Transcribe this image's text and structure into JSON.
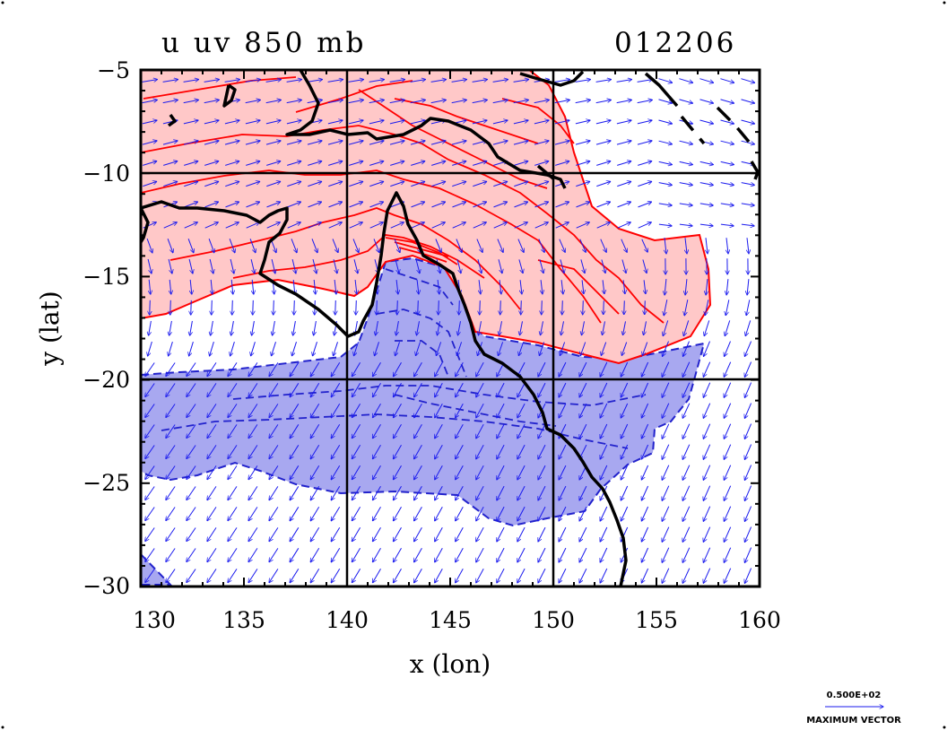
{
  "chart_data": {
    "type": "contour",
    "title": "u uv 850 mb",
    "date_label": "012206",
    "xlabel": "x (lon)",
    "ylabel": "y (lat)",
    "xlim": [
      130,
      160
    ],
    "ylim": [
      -30,
      -5
    ],
    "x_ticks": [
      "130",
      "135",
      "140",
      "145",
      "150",
      "155",
      "160"
    ],
    "y_ticks": [
      "−5",
      "−10",
      "−15",
      "−20",
      "−25",
      "−30"
    ],
    "grid_lon": [
      140,
      150
    ],
    "grid_lat": [
      -10,
      -20
    ],
    "fields": [
      {
        "name": "u positive (westerly)",
        "color": "#ff0000",
        "fill": "#ffc8c8",
        "line_style": "solid"
      },
      {
        "name": "u negative (easterly)",
        "color": "#2222cc",
        "fill": "#a8a8f0",
        "line_style": "dashed"
      },
      {
        "name": "wind vectors",
        "color": "#1a1aee"
      }
    ],
    "coastline_color": "#000000",
    "reference_vector": {
      "value": "0.500E+02",
      "label": "MAXIMUM VECTOR"
    }
  }
}
